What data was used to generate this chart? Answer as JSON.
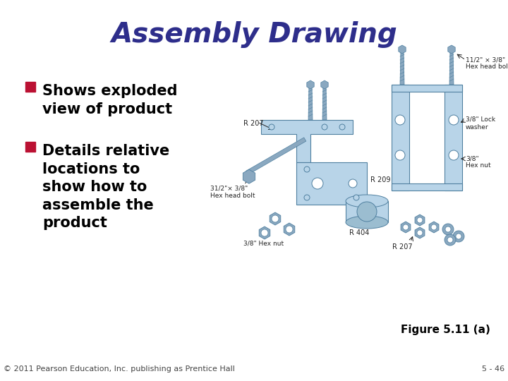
{
  "title": "Assembly Drawing",
  "title_color": "#2E2E8B",
  "title_fontstyle": "italic",
  "title_fontsize": 28,
  "title_fontweight": "bold",
  "bg_color": "#FFFFFF",
  "bullet_color": "#BB1133",
  "bullet_text_color": "#000000",
  "bullet_fontsize": 15,
  "bullets": [
    "Shows exploded\nview of product",
    "Details relative\nlocations to\nshow how to\nassemble the\nproduct"
  ],
  "figure_caption": "Figure 5.11 (a)",
  "caption_fontsize": 11,
  "caption_fontweight": "bold",
  "footer_left": "© 2011 Pearson Education, Inc. publishing as Prentice Hall",
  "footer_right": "5 - 46",
  "footer_fontsize": 8,
  "part_color": "#B8D4E8",
  "part_edge": "#5080A0",
  "bolt_color": "#8AA8C0",
  "label_color": "#222222",
  "label_fontsize": 6.5
}
